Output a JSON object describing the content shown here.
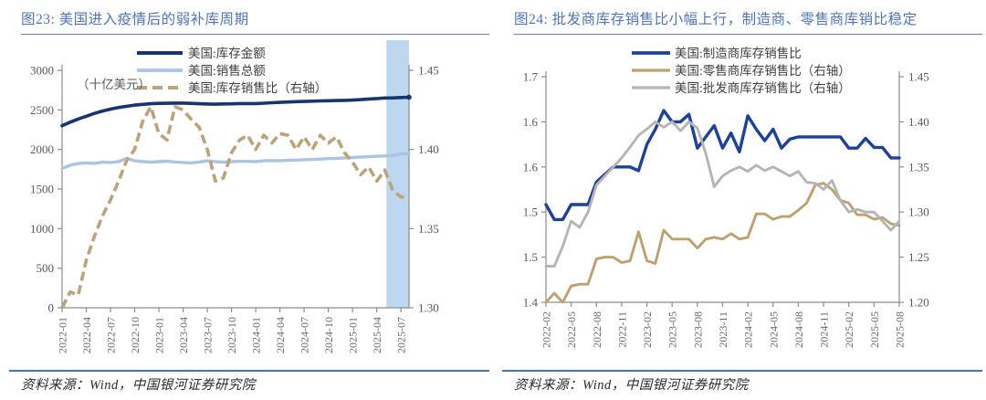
{
  "source_note": "资料来源：Wind，中国银河证券研究院",
  "chart_data": [
    {
      "id": "fig23",
      "type": "line",
      "title": "图23: 美国进入疫情后的弱补库周期",
      "unit_label": "（十亿美元）",
      "source": "资料来源：Wind，中国银河证券研究院",
      "n_points": 44,
      "x_start": "2022-01",
      "x_tick_labels": [
        "2022-01",
        "2022-04",
        "2022-07",
        "2022-10",
        "2023-01",
        "2023-04",
        "2023-07",
        "2023-10",
        "2024-01",
        "2024-04",
        "2024-07",
        "2024-10",
        "2025-01",
        "2025-04",
        "2025-07"
      ],
      "x_tick_step": 3,
      "left_axis": {
        "min": 0,
        "max": 3000,
        "tick_values": [
          3000,
          2500,
          2000,
          1500,
          1000,
          500,
          0
        ],
        "tick_labels": [
          "3000",
          "2500",
          "2000",
          "1500",
          "1000",
          "500",
          "0"
        ]
      },
      "right_axis": {
        "min": 1.3,
        "max": 1.45,
        "tick_values": [
          1.45,
          1.4,
          1.35,
          1.3
        ],
        "tick_labels": [
          "1.45",
          "1.40",
          "1.35",
          "1.30"
        ]
      },
      "highlight_band": {
        "x_from": 40.2,
        "x_to": 43,
        "color": "#bdd7ee"
      },
      "legend_position": "top-center",
      "grid": false,
      "series": [
        {
          "key": "inventory",
          "name": "美国:库存金额",
          "axis": "left",
          "color": "#16346e",
          "style": "solid",
          "width": 3.6,
          "end_dot": true,
          "values": [
            2300,
            2345,
            2385,
            2420,
            2455,
            2485,
            2510,
            2530,
            2545,
            2560,
            2570,
            2578,
            2582,
            2584,
            2586,
            2586,
            2582,
            2578,
            2574,
            2572,
            2575,
            2576,
            2580,
            2580,
            2580,
            2585,
            2590,
            2595,
            2600,
            2604,
            2606,
            2610,
            2613,
            2616,
            2618,
            2620,
            2624,
            2630,
            2638,
            2644,
            2650,
            2652,
            2656,
            2660
          ]
        },
        {
          "key": "sales",
          "name": "美国:销售总额",
          "axis": "left",
          "color": "#aac4e6",
          "style": "solid",
          "width": 3.4,
          "end_dot": false,
          "values": [
            1758,
            1800,
            1822,
            1830,
            1824,
            1840,
            1836,
            1846,
            1886,
            1856,
            1846,
            1840,
            1846,
            1852,
            1842,
            1836,
            1830,
            1842,
            1856,
            1846,
            1840,
            1846,
            1850,
            1850,
            1846,
            1856,
            1860,
            1856,
            1864,
            1866,
            1870,
            1874,
            1878,
            1884,
            1888,
            1894,
            1898,
            1904,
            1908,
            1914,
            1918,
            1924,
            1944,
            1950
          ]
        },
        {
          "key": "inventory_sales_ratio",
          "name": "美国:库存销售比（右轴）",
          "axis": "right",
          "color": "#bda37a",
          "style": "dashed",
          "width": 3.6,
          "end_dot": false,
          "values": [
            1.3,
            1.31,
            1.308,
            1.33,
            1.345,
            1.358,
            1.368,
            1.38,
            1.393,
            1.4,
            1.418,
            1.427,
            1.41,
            1.406,
            1.427,
            1.425,
            1.419,
            1.414,
            1.4,
            1.38,
            1.382,
            1.398,
            1.406,
            1.409,
            1.4,
            1.409,
            1.404,
            1.41,
            1.409,
            1.4,
            1.408,
            1.4,
            1.409,
            1.404,
            1.408,
            1.398,
            1.392,
            1.384,
            1.389,
            1.38,
            1.387,
            1.374,
            1.37,
            1.37
          ]
        }
      ]
    },
    {
      "id": "fig24",
      "type": "line",
      "title": "图24: 批发商库存销售比小幅上行，制造商、零售商库销比稳定",
      "unit_label": "",
      "source": "资料来源：Wind，中国银河证券研究院",
      "n_points": 43,
      "x_start": "2022-02",
      "x_tick_labels": [
        "2022-02",
        "2022-05",
        "2022-08",
        "2022-11",
        "2023-02",
        "2023-05",
        "2023-08",
        "2023-11",
        "2024-02",
        "2024-05",
        "2024-08",
        "2024-11",
        "2025-02",
        "2025-05",
        "2025-08"
      ],
      "x_tick_step": 3,
      "left_axis": {
        "min": 1.4,
        "max": 1.7,
        "tick_values": [
          1.7,
          1.64,
          1.58,
          1.52,
          1.46,
          1.4
        ],
        "tick_labels": [
          "1.7",
          "1.6",
          "1.6",
          "1.5",
          "1.5",
          "1.4"
        ]
      },
      "right_axis": {
        "min": 1.2,
        "max": 1.45,
        "tick_values": [
          1.45,
          1.4,
          1.35,
          1.3,
          1.25,
          1.2
        ],
        "tick_labels": [
          "1.45",
          "1.40",
          "1.35",
          "1.30",
          "1.25",
          "1.20"
        ]
      },
      "highlight_band": null,
      "legend_position": "top-center",
      "grid": false,
      "series": [
        {
          "key": "manufacturer_ratio",
          "name": "美国:制造商库存销售比",
          "axis": "left",
          "color": "#1c419b",
          "style": "solid",
          "width": 3.4,
          "end_dot": false,
          "values": [
            1.53,
            1.51,
            1.51,
            1.53,
            1.53,
            1.53,
            1.56,
            1.57,
            1.58,
            1.58,
            1.58,
            1.575,
            1.61,
            1.63,
            1.655,
            1.64,
            1.64,
            1.65,
            1.605,
            1.62,
            1.635,
            1.605,
            1.625,
            1.6,
            1.648,
            1.63,
            1.615,
            1.63,
            1.605,
            1.617,
            1.62,
            1.62,
            1.62,
            1.62,
            1.62,
            1.62,
            1.605,
            1.605,
            1.618,
            1.606,
            1.606,
            1.592,
            1.592
          ]
        },
        {
          "key": "retailer_ratio",
          "name": "美国:零售商库存销售比（右轴）",
          "axis": "right",
          "color": "#bfa06e",
          "style": "solid",
          "width": 2.9,
          "end_dot": false,
          "values": [
            1.2,
            1.21,
            1.2,
            1.218,
            1.22,
            1.22,
            1.248,
            1.25,
            1.25,
            1.244,
            1.246,
            1.278,
            1.246,
            1.243,
            1.28,
            1.27,
            1.27,
            1.27,
            1.26,
            1.27,
            1.272,
            1.27,
            1.276,
            1.27,
            1.272,
            1.298,
            1.298,
            1.292,
            1.295,
            1.295,
            1.302,
            1.31,
            1.33,
            1.332,
            1.325,
            1.313,
            1.31,
            1.297,
            1.297,
            1.292,
            1.294,
            1.287,
            1.285
          ]
        },
        {
          "key": "wholesaler_ratio",
          "name": "美国:批发商库存销售比（右轴）",
          "axis": "right",
          "color": "#b5b5b5",
          "style": "solid",
          "width": 2.9,
          "end_dot": false,
          "values": [
            1.24,
            1.24,
            1.262,
            1.29,
            1.283,
            1.3,
            1.33,
            1.34,
            1.35,
            1.36,
            1.372,
            1.385,
            1.392,
            1.4,
            1.394,
            1.4,
            1.39,
            1.4,
            1.393,
            1.365,
            1.328,
            1.34,
            1.346,
            1.35,
            1.345,
            1.352,
            1.346,
            1.35,
            1.345,
            1.34,
            1.345,
            1.333,
            1.332,
            1.325,
            1.335,
            1.313,
            1.3,
            1.303,
            1.3,
            1.3,
            1.29,
            1.28,
            1.29
          ]
        }
      ]
    }
  ]
}
